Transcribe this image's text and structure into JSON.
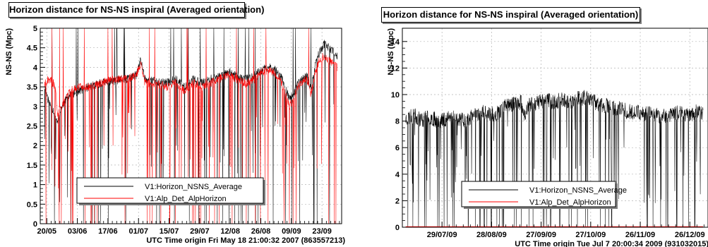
{
  "chart_data": [
    {
      "type": "line",
      "title": "Horizon distance for NS-NS inspiral (Averaged orientation)",
      "ylabel": "NS-NS (Mpc)",
      "xlabel": "UTC Time origin Fri May 18 21:00:32 2007 (863557213)",
      "ylim": [
        0,
        5
      ],
      "yticks": [
        "0",
        "0.5",
        "1",
        "1.5",
        "2",
        "2.5",
        "3",
        "3.5",
        "4",
        "4.5",
        "5"
      ],
      "xlim": [
        -2,
        136
      ],
      "x_unit": "days since time origin",
      "xtick_labels": [
        {
          "label": "20/05",
          "x": 1
        },
        {
          "label": "03/06",
          "x": 15
        },
        {
          "label": "17/06",
          "x": 29
        },
        {
          "label": "01/07",
          "x": 43
        },
        {
          "label": "15/07",
          "x": 57
        },
        {
          "label": "29/07",
          "x": 71
        },
        {
          "label": "12/08",
          "x": 85
        },
        {
          "label": "26/08",
          "x": 99
        },
        {
          "label": "09/09",
          "x": 113
        },
        {
          "label": "23/09",
          "x": 127
        }
      ],
      "legend_position": "bottom-center",
      "series": [
        {
          "name": "V1:Horizon_NSNS_Average",
          "color": "#000000",
          "points": [
            [
              0,
              3.5
            ],
            [
              2,
              3.1
            ],
            [
              4,
              2.9
            ],
            [
              6,
              2.6
            ],
            [
              8,
              3.0
            ],
            [
              10,
              3.2
            ],
            [
              12,
              3.3
            ],
            [
              16,
              3.4
            ],
            [
              20,
              3.5
            ],
            [
              26,
              3.6
            ],
            [
              32,
              3.65
            ],
            [
              38,
              3.7
            ],
            [
              42,
              3.8
            ],
            [
              44,
              4.2
            ],
            [
              46,
              3.7
            ],
            [
              50,
              3.65
            ],
            [
              56,
              3.6
            ],
            [
              60,
              3.7
            ],
            [
              64,
              3.5
            ],
            [
              68,
              3.7
            ],
            [
              72,
              3.6
            ],
            [
              76,
              3.7
            ],
            [
              80,
              3.75
            ],
            [
              84,
              3.9
            ],
            [
              88,
              3.8
            ],
            [
              92,
              3.7
            ],
            [
              96,
              3.8
            ],
            [
              100,
              3.95
            ],
            [
              104,
              4.0
            ],
            [
              108,
              3.8
            ],
            [
              112,
              3.2
            ],
            [
              114,
              3.3
            ],
            [
              116,
              3.6
            ],
            [
              120,
              3.8
            ],
            [
              122,
              3.4
            ],
            [
              124,
              4.1
            ],
            [
              126,
              4.4
            ],
            [
              128,
              4.6
            ],
            [
              130,
              4.5
            ],
            [
              132,
              4.4
            ],
            [
              134,
              4.3
            ]
          ]
        },
        {
          "name": "V1:Alp_Det_AlpHorizon",
          "color": "#ff0000",
          "points": [
            [
              0,
              3.6
            ],
            [
              2,
              3.7
            ],
            [
              4,
              3.6
            ],
            [
              5,
              3.4
            ],
            [
              6,
              2.8
            ],
            [
              8,
              3.0
            ],
            [
              10,
              3.2
            ],
            [
              12,
              3.4
            ],
            [
              16,
              3.5
            ],
            [
              20,
              3.5
            ],
            [
              26,
              3.6
            ],
            [
              32,
              3.7
            ],
            [
              38,
              3.7
            ],
            [
              42,
              3.8
            ],
            [
              44,
              4.1
            ],
            [
              46,
              3.6
            ],
            [
              50,
              3.6
            ],
            [
              56,
              3.5
            ],
            [
              60,
              3.6
            ],
            [
              64,
              3.4
            ],
            [
              68,
              3.6
            ],
            [
              72,
              3.5
            ],
            [
              76,
              3.6
            ],
            [
              80,
              3.7
            ],
            [
              84,
              3.8
            ],
            [
              88,
              3.7
            ],
            [
              92,
              3.6
            ],
            [
              96,
              3.7
            ],
            [
              100,
              3.9
            ],
            [
              104,
              3.9
            ],
            [
              108,
              3.7
            ],
            [
              112,
              3.0
            ],
            [
              114,
              3.2
            ],
            [
              116,
              3.5
            ],
            [
              120,
              3.7
            ],
            [
              122,
              3.3
            ],
            [
              124,
              3.9
            ],
            [
              126,
              4.2
            ],
            [
              128,
              4.3
            ],
            [
              130,
              4.2
            ],
            [
              132,
              4.1
            ],
            [
              134,
              4.0
            ]
          ]
        }
      ]
    },
    {
      "type": "line",
      "title": "Horizon distance for NS-NS inspiral (Averaged orientation)",
      "ylabel": "NS-NS (Mpc)",
      "xlabel": "UTC Time origin Tue Jul  7 20:00:34 2009 (931032015)",
      "ylim": [
        0,
        15
      ],
      "yticks": [
        "0",
        "2",
        "4",
        "6",
        "8",
        "10",
        "12",
        "14"
      ],
      "xlim": [
        -2,
        183
      ],
      "x_unit": "days since time origin",
      "xtick_labels": [
        {
          "label": "29/07/09",
          "x": 22
        },
        {
          "label": "28/08/09",
          "x": 52
        },
        {
          "label": "27/09/09",
          "x": 82
        },
        {
          "label": "27/10/09",
          "x": 112
        },
        {
          "label": "26/11/09",
          "x": 142
        },
        {
          "label": "26/12/09",
          "x": 172
        }
      ],
      "legend_position": "bottom-center",
      "series": [
        {
          "name": "V1:Horizon_NSNS_Average",
          "color": "#000000",
          "points": [
            [
              0,
              8.2
            ],
            [
              5,
              8.4
            ],
            [
              10,
              8.1
            ],
            [
              15,
              8.3
            ],
            [
              20,
              8.0
            ],
            [
              25,
              8.2
            ],
            [
              30,
              8.3
            ],
            [
              35,
              8.1
            ],
            [
              40,
              8.3
            ],
            [
              45,
              8.7
            ],
            [
              50,
              8.5
            ],
            [
              55,
              8.6
            ],
            [
              60,
              9.1
            ],
            [
              65,
              9.3
            ],
            [
              70,
              9.4
            ],
            [
              72,
              8.5
            ],
            [
              75,
              9.2
            ],
            [
              80,
              9.4
            ],
            [
              85,
              9.6
            ],
            [
              90,
              9.4
            ],
            [
              95,
              9.7
            ],
            [
              100,
              9.5
            ],
            [
              105,
              9.7
            ],
            [
              110,
              9.8
            ],
            [
              115,
              9.4
            ],
            [
              120,
              9.2
            ],
            [
              125,
              9.0
            ],
            [
              130,
              8.9
            ],
            [
              135,
              8.7
            ],
            [
              140,
              8.7
            ],
            [
              145,
              8.6
            ],
            [
              150,
              8.6
            ],
            [
              155,
              8.3
            ],
            [
              160,
              8.5
            ],
            [
              165,
              8.6
            ],
            [
              170,
              8.4
            ],
            [
              175,
              8.7
            ],
            [
              180,
              8.6
            ]
          ]
        },
        {
          "name": "V1:Alp_Det_AlpHorizon",
          "color": "#ff0000",
          "points": [
            [
              0,
              0
            ],
            [
              180,
              0
            ]
          ]
        }
      ]
    }
  ]
}
